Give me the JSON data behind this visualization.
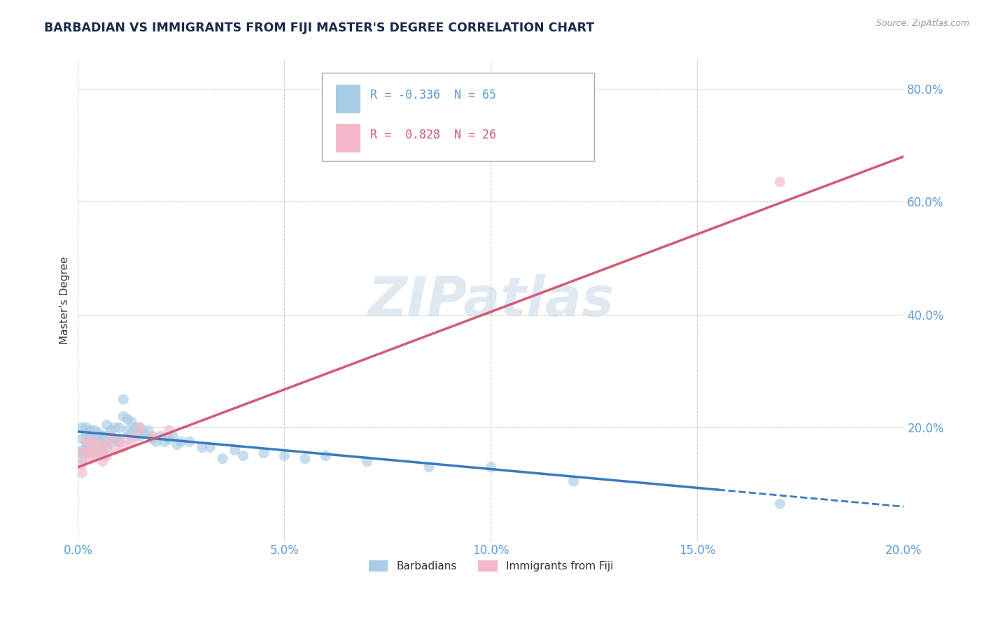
{
  "title": "BARBADIAN VS IMMIGRANTS FROM FIJI MASTER'S DEGREE CORRELATION CHART",
  "source": "Source: ZipAtlas.com",
  "ylabel": "Master's Degree",
  "r_barbadian": -0.336,
  "n_barbadian": 65,
  "r_fiji": 0.828,
  "n_fiji": 26,
  "color_barbadian": "#a8cce4",
  "color_fiji": "#f4b8c8",
  "color_trend_barbadian": "#3a7abf",
  "color_trend_fiji": "#d45a72",
  "background_color": "#ffffff",
  "grid_color": "#cccccc",
  "watermark": "ZIPatlas",
  "xlim": [
    0.0,
    0.2
  ],
  "ylim": [
    0.0,
    0.85
  ],
  "xticks": [
    0.0,
    0.05,
    0.1,
    0.15,
    0.2
  ],
  "yticks": [
    0.2,
    0.4,
    0.6,
    0.8
  ],
  "barbadian_x": [
    0.001,
    0.001,
    0.001,
    0.001,
    0.001,
    0.002,
    0.002,
    0.002,
    0.002,
    0.003,
    0.003,
    0.003,
    0.003,
    0.004,
    0.004,
    0.004,
    0.005,
    0.005,
    0.005,
    0.006,
    0.006,
    0.006,
    0.007,
    0.007,
    0.007,
    0.008,
    0.008,
    0.009,
    0.009,
    0.01,
    0.01,
    0.011,
    0.011,
    0.012,
    0.012,
    0.013,
    0.013,
    0.014,
    0.015,
    0.015,
    0.016,
    0.017,
    0.018,
    0.019,
    0.02,
    0.021,
    0.022,
    0.023,
    0.024,
    0.025,
    0.027,
    0.03,
    0.032,
    0.035,
    0.038,
    0.04,
    0.045,
    0.05,
    0.055,
    0.06,
    0.07,
    0.085,
    0.1,
    0.12,
    0.17
  ],
  "barbadian_y": [
    0.2,
    0.18,
    0.16,
    0.155,
    0.145,
    0.2,
    0.19,
    0.175,
    0.16,
    0.195,
    0.185,
    0.17,
    0.155,
    0.195,
    0.18,
    0.16,
    0.19,
    0.175,
    0.155,
    0.185,
    0.17,
    0.155,
    0.205,
    0.185,
    0.165,
    0.195,
    0.175,
    0.2,
    0.18,
    0.2,
    0.175,
    0.25,
    0.22,
    0.215,
    0.195,
    0.21,
    0.19,
    0.2,
    0.185,
    0.2,
    0.19,
    0.195,
    0.18,
    0.175,
    0.185,
    0.175,
    0.18,
    0.185,
    0.17,
    0.175,
    0.175,
    0.165,
    0.165,
    0.145,
    0.16,
    0.15,
    0.155,
    0.15,
    0.145,
    0.15,
    0.14,
    0.13,
    0.13,
    0.105,
    0.065
  ],
  "fiji_x": [
    0.001,
    0.001,
    0.001,
    0.002,
    0.002,
    0.003,
    0.003,
    0.004,
    0.004,
    0.005,
    0.005,
    0.006,
    0.006,
    0.007,
    0.007,
    0.008,
    0.009,
    0.01,
    0.011,
    0.012,
    0.013,
    0.014,
    0.015,
    0.018,
    0.022,
    0.17
  ],
  "fiji_y": [
    0.155,
    0.135,
    0.12,
    0.175,
    0.155,
    0.165,
    0.145,
    0.175,
    0.155,
    0.17,
    0.15,
    0.16,
    0.14,
    0.17,
    0.15,
    0.185,
    0.16,
    0.175,
    0.165,
    0.18,
    0.175,
    0.185,
    0.2,
    0.185,
    0.195,
    0.635
  ],
  "trend_b_x0": 0.0,
  "trend_b_y0": 0.193,
  "trend_b_x1": 0.155,
  "trend_b_y1": 0.09,
  "trend_b_dash_x0": 0.155,
  "trend_b_dash_y0": 0.09,
  "trend_b_dash_x1": 0.2,
  "trend_b_dash_y1": 0.06,
  "trend_f_x0": 0.0,
  "trend_f_y0": 0.13,
  "trend_f_x1": 0.2,
  "trend_f_y1": 0.68
}
